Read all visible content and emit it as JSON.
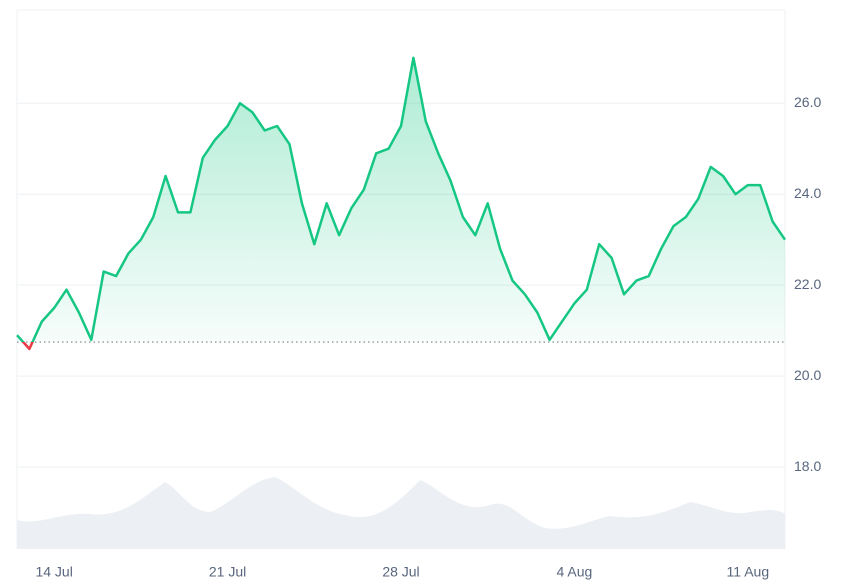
{
  "chart_data": {
    "type": "line",
    "categories": [
      null,
      null,
      null,
      "14 Jul",
      null,
      null,
      null,
      null,
      null,
      null,
      null,
      null,
      null,
      null,
      null,
      null,
      null,
      "21 Jul",
      null,
      null,
      null,
      null,
      null,
      null,
      null,
      null,
      null,
      null,
      null,
      null,
      null,
      "28 Jul",
      null,
      null,
      null,
      null,
      null,
      null,
      null,
      null,
      null,
      null,
      null,
      null,
      null,
      "4 Aug",
      null,
      null,
      null,
      null,
      null,
      null,
      null,
      null,
      null,
      null,
      null,
      null,
      null,
      "11 Aug",
      null,
      null,
      null
    ],
    "series": [
      {
        "color": "#16c784",
        "values": [
          20.9,
          20.6,
          21.2,
          21.5,
          21.9,
          21.4,
          20.8,
          22.3,
          22.2,
          22.7,
          23.0,
          23.5,
          24.4,
          23.6,
          23.6,
          24.8,
          25.2,
          25.5,
          26.0,
          25.8,
          25.4,
          25.5,
          25.1,
          23.8,
          22.9,
          23.8,
          23.1,
          23.7,
          24.1,
          24.9,
          25.0,
          25.5,
          27.0,
          25.6,
          24.9,
          24.3,
          23.5,
          23.1,
          23.8,
          22.8,
          22.1,
          21.8,
          21.4,
          20.8,
          21.2,
          21.6,
          21.9,
          22.9,
          22.6,
          21.8,
          22.1,
          22.2,
          22.8,
          23.3,
          23.5,
          23.9,
          24.6,
          24.4,
          24.0,
          24.2,
          24.2,
          23.4,
          23.0
        ]
      }
    ],
    "baseline": 20.75,
    "below_color": "#ea3943",
    "ylim": [
      16.2,
      28.05
    ],
    "yticks": [
      {
        "value": 18,
        "label": "18.0"
      },
      {
        "value": 20,
        "label": "20.0"
      },
      {
        "value": 22,
        "label": "22.0"
      },
      {
        "value": 24,
        "label": "24.0"
      },
      {
        "value": 26,
        "label": "26.0"
      }
    ],
    "grid": true
  }
}
